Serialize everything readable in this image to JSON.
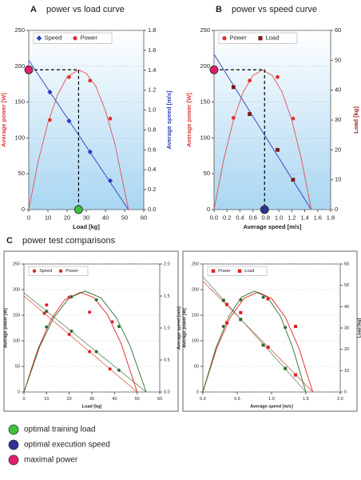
{
  "chart_data": [
    {
      "type": "scatter",
      "panel_label": "A",
      "title": "power vs load curve",
      "xlabel": "Load [kg]",
      "ylabel": "Average power [W]",
      "ylabel_color": "#e03a3a",
      "y2label": "Average speed [m/s]",
      "y2label_color": "#2a3fbf",
      "xlim": [
        0,
        60
      ],
      "xticks": [
        0,
        10,
        20,
        30,
        40,
        50,
        60
      ],
      "ylim": [
        0,
        250
      ],
      "yticks": [
        0,
        50,
        100,
        150,
        200,
        250
      ],
      "y2lim": [
        0,
        1.8
      ],
      "y2ticks": [
        {
          "value": 0,
          "label": "0.0"
        },
        0.2,
        0.4,
        0.6,
        0.8,
        {
          "value": 1,
          "label": "1.0"
        },
        1.2,
        1.4,
        1.6,
        1.8
      ],
      "grid": true,
      "series": [
        {
          "name": "Speed",
          "color": "#2a3fbf",
          "marker": "diamond",
          "axis": "y2",
          "x": [
            11,
            21,
            32,
            42.5
          ],
          "values": [
            1.18,
            0.89,
            0.58,
            0.29
          ]
        },
        {
          "name": "Power",
          "color": "#e03030",
          "marker": "circle",
          "x": [
            11,
            21,
            32,
            42.5
          ],
          "values": [
            125,
            185,
            180,
            127
          ]
        },
        {
          "color": "#2a3fbf",
          "mode": "line",
          "axis": "y2",
          "x": [
            0,
            52
          ],
          "values": [
            1.5,
            0
          ]
        },
        {
          "color": "#e05050",
          "mode": "line",
          "x": [
            0,
            5,
            10,
            15,
            20,
            26,
            30,
            35,
            40,
            45,
            52
          ],
          "values": [
            0,
            68,
            121,
            160,
            185,
            195,
            190,
            172,
            138,
            91,
            0
          ]
        }
      ],
      "optimum": {
        "x": 26,
        "y": 195,
        "x_color": "#3cc43c",
        "y_color": "#e0206a"
      }
    },
    {
      "type": "scatter",
      "panel_label": "B",
      "title": "power vs speed curve",
      "xlabel": "Average speed [m/s]",
      "ylabel": "Average power [W]",
      "ylabel_color": "#e03a3a",
      "y2label": "Load [kg]",
      "y2label_color": "#a02020",
      "xlim": [
        0,
        1.8
      ],
      "xticks": [
        {
          "value": 0,
          "label": "0.0"
        },
        0.2,
        0.4,
        0.6,
        0.8,
        {
          "value": 1,
          "label": "1.0"
        },
        1.2,
        1.4,
        1.6,
        1.8
      ],
      "ylim": [
        0,
        250
      ],
      "yticks": [
        0,
        50,
        100,
        150,
        200,
        250
      ],
      "y2lim": [
        0,
        60
      ],
      "y2ticks": [
        0,
        10,
        20,
        30,
        40,
        50,
        60
      ],
      "grid": true,
      "series": [
        {
          "name": "Power",
          "color": "#e03030",
          "marker": "circle",
          "x": [
            0.3,
            0.55,
            0.98,
            1.22
          ],
          "values": [
            128,
            180,
            185,
            127
          ]
        },
        {
          "name": "Load",
          "color": "#7a1a1a",
          "marker": "square",
          "axis": "y2",
          "x": [
            0.3,
            0.55,
            0.98,
            1.22
          ],
          "values": [
            41,
            32,
            20,
            10
          ]
        },
        {
          "color": "#2a3fbf",
          "mode": "line",
          "axis": "y2",
          "x": [
            0,
            1.5
          ],
          "values": [
            52,
            0
          ]
        },
        {
          "color": "#e05050",
          "mode": "line",
          "x": [
            0,
            0.15,
            0.3,
            0.45,
            0.6,
            0.75,
            0.9,
            1.05,
            1.2,
            1.35,
            1.5
          ],
          "values": [
            0,
            70,
            125,
            164,
            187,
            195,
            187,
            164,
            125,
            70,
            0
          ]
        }
      ],
      "optimum": {
        "x": 0.78,
        "y": 195,
        "x_color": "#2e3192",
        "y_color": "#e0206a"
      }
    },
    {
      "type": "scatter",
      "xlabel": "Load [kg]",
      "ylabel": "Average power [W]",
      "y2label": "Average speed [m/s]",
      "xlim": [
        0,
        60
      ],
      "xticks": [
        0,
        10,
        20,
        30,
        40,
        50,
        60
      ],
      "ylim": [
        0,
        250
      ],
      "yticks": [
        0,
        50,
        100,
        150,
        200,
        250
      ],
      "y2lim": [
        0,
        2
      ],
      "y2ticks": [
        {
          "value": 0,
          "label": "0.0"
        },
        0.5,
        {
          "value": 1,
          "label": "1.0"
        },
        1.5,
        {
          "value": 2,
          "label": "2.0"
        }
      ],
      "grid": true,
      "series": [
        {
          "name": "Speed",
          "color": "#e02020",
          "marker": "circle",
          "axis": "y2",
          "x": [
            9,
            20,
            29,
            38
          ],
          "values": [
            1.23,
            0.9,
            0.63,
            0.36
          ]
        },
        {
          "name": "Power",
          "color": "#e02020",
          "marker": "circle",
          "x": [
            10,
            20,
            29,
            39
          ],
          "values": [
            170,
            185,
            156,
            137
          ]
        },
        {
          "color": "#2e6b2e",
          "marker": "circle",
          "axis": "y2",
          "x": [
            10,
            21,
            32,
            42
          ],
          "values": [
            1.26,
            0.95,
            0.63,
            0.34
          ]
        },
        {
          "color": "#2e6b2e",
          "marker": "circle",
          "x": [
            10,
            21,
            32,
            42
          ],
          "values": [
            127,
            186,
            180,
            128
          ]
        },
        {
          "color": "#e07070",
          "mode": "line",
          "axis": "y2",
          "x": [
            0,
            50
          ],
          "values": [
            1.5,
            0
          ]
        },
        {
          "color": "#6a9a6a",
          "mode": "line",
          "axis": "y2",
          "x": [
            0,
            54
          ],
          "values": [
            1.55,
            0
          ]
        },
        {
          "color": "#e02020",
          "mode": "line",
          "x": [
            0,
            6,
            12,
            18,
            25,
            31,
            37,
            43,
            50
          ],
          "values": [
            0,
            82,
            142,
            180,
            195,
            184,
            150,
            94,
            0
          ]
        },
        {
          "color": "#2e6b2e",
          "mode": "line",
          "x": [
            0,
            7,
            13,
            20,
            27,
            34,
            41,
            47,
            54
          ],
          "values": [
            0,
            89,
            144,
            184,
            197,
            184,
            144,
            89,
            0
          ]
        }
      ]
    },
    {
      "type": "scatter",
      "xlabel": "Average speed [m/s]",
      "ylabel": "Average power [W]",
      "y2label": "Load [kg]",
      "xlim": [
        0,
        2
      ],
      "xticks": [
        {
          "value": 0,
          "label": "0.0"
        },
        0.5,
        {
          "value": 1,
          "label": "1.0"
        },
        1.5,
        {
          "value": 2,
          "label": "2.0"
        }
      ],
      "ylim": [
        0,
        250
      ],
      "yticks": [
        0,
        50,
        100,
        150,
        200,
        250
      ],
      "y2lim": [
        0,
        60
      ],
      "y2ticks": [
        0,
        10,
        20,
        30,
        40,
        50,
        60
      ],
      "grid": true,
      "series": [
        {
          "name": "Power",
          "color": "#e02020",
          "marker": "square",
          "x": [
            0.35,
            0.55,
            0.95,
            1.35
          ],
          "values": [
            135,
            155,
            182,
            128
          ]
        },
        {
          "name": "Load",
          "color": "#e02020",
          "marker": "square",
          "axis": "y2",
          "x": [
            0.35,
            0.55,
            0.95,
            1.35
          ],
          "values": [
            41,
            34,
            21,
            8
          ]
        },
        {
          "color": "#2e6b2e",
          "marker": "circle",
          "x": [
            0.3,
            0.55,
            0.88,
            1.2
          ],
          "values": [
            128,
            180,
            185,
            126
          ]
        },
        {
          "color": "#2e6b2e",
          "marker": "square",
          "axis": "y2",
          "x": [
            0.3,
            0.55,
            0.88,
            1.2
          ],
          "values": [
            43,
            34,
            22,
            11
          ]
        },
        {
          "color": "#e07070",
          "mode": "line",
          "axis": "y2",
          "x": [
            0,
            1.6
          ],
          "values": [
            52,
            0
          ]
        },
        {
          "color": "#6a9a6a",
          "mode": "line",
          "axis": "y2",
          "x": [
            0,
            1.5
          ],
          "values": [
            54,
            0
          ]
        },
        {
          "color": "#e02020",
          "mode": "line",
          "x": [
            0,
            0.2,
            0.4,
            0.6,
            0.8,
            1.0,
            1.2,
            1.4,
            1.6
          ],
          "values": [
            0,
            85,
            146,
            183,
            195,
            183,
            146,
            85,
            0
          ]
        },
        {
          "color": "#2e6b2e",
          "mode": "line",
          "x": [
            0,
            0.19,
            0.38,
            0.56,
            0.75,
            0.94,
            1.13,
            1.31,
            1.5
          ],
          "values": [
            0,
            86,
            148,
            185,
            197,
            185,
            148,
            86,
            0
          ]
        }
      ]
    }
  ],
  "section": {
    "label": "C",
    "title": "power test comparisons"
  },
  "legend": {
    "items": [
      {
        "label": "optimal training load",
        "color": "#3cc43c"
      },
      {
        "label": "optimal execution speed",
        "color": "#2e3192"
      },
      {
        "label": "maximal power",
        "color": "#e0206a"
      }
    ]
  }
}
